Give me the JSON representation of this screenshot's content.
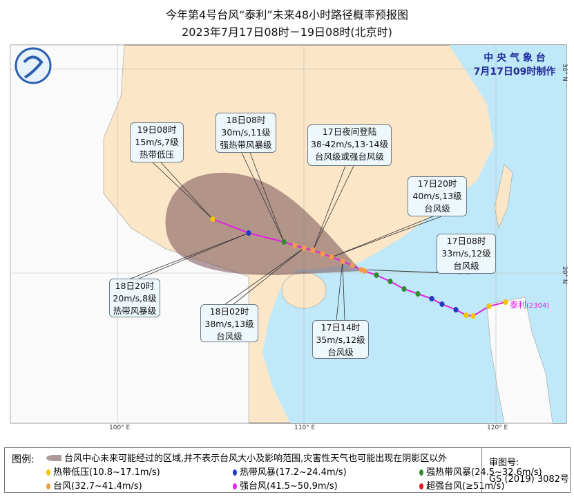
{
  "header": {
    "title": "今年第4号台风“泰利”未来48小时路径概率预报图",
    "subtitle": "2023年7月17日08时－19日08时(北京时)"
  },
  "agency": {
    "name": "中 央 气 象 台",
    "made_time": "7月17日09时制作"
  },
  "axes": {
    "lon": [
      "100° E",
      "110° E",
      "120° E"
    ],
    "lat": [
      "30° N",
      "20° N"
    ]
  },
  "typhoon": {
    "name": "泰利",
    "number": "(2304)"
  },
  "callouts": [
    {
      "time": "19日08时",
      "wind": "15m/s,7级",
      "level": "热带低压"
    },
    {
      "time": "18日08时",
      "wind": "30m/s,11级",
      "level": "强热带风暴级"
    },
    {
      "time": "17日夜间登陆",
      "wind": "38-42m/s,13-14级",
      "level": "台风级或强台风级"
    },
    {
      "time": "17日20时",
      "wind": "40m/s,13级",
      "level": "台风级"
    },
    {
      "time": "17日08时",
      "wind": "33m/s,12级",
      "level": "台风级"
    },
    {
      "time": "18日20时",
      "wind": "20m/s,8级",
      "level": "热带风暴级"
    },
    {
      "time": "18日02时",
      "wind": "38m/s,13级",
      "level": "台风级"
    },
    {
      "time": "17日14时",
      "wind": "35m/s,12级",
      "level": "台风级"
    }
  ],
  "legend": {
    "label": "图例:",
    "cone": "台风中心未来可能经过的区域,并不表示台风大小及影响范围,灾害性天气也可能出现在阴影区以外",
    "items": [
      {
        "text": "热带低压(10.8~17.1m/s)",
        "color": "#f2c500"
      },
      {
        "text": "热带风暴(17.2~24.4m/s)",
        "color": "#1d3bbf"
      },
      {
        "text": "强热带风暴(24.5~32.6m/s)",
        "color": "#2e8b2e"
      },
      {
        "text": "台风(32.7~41.4m/s)",
        "color": "#f59a4a"
      },
      {
        "text": "强台风(41.5~50.9m/s)",
        "color": "#ee22ee"
      },
      {
        "text": "超强台风(≥51m/s)",
        "color": "#e8141e"
      }
    ]
  },
  "review": {
    "label": "审图号:",
    "number": "GS (2019) 3082号"
  }
}
